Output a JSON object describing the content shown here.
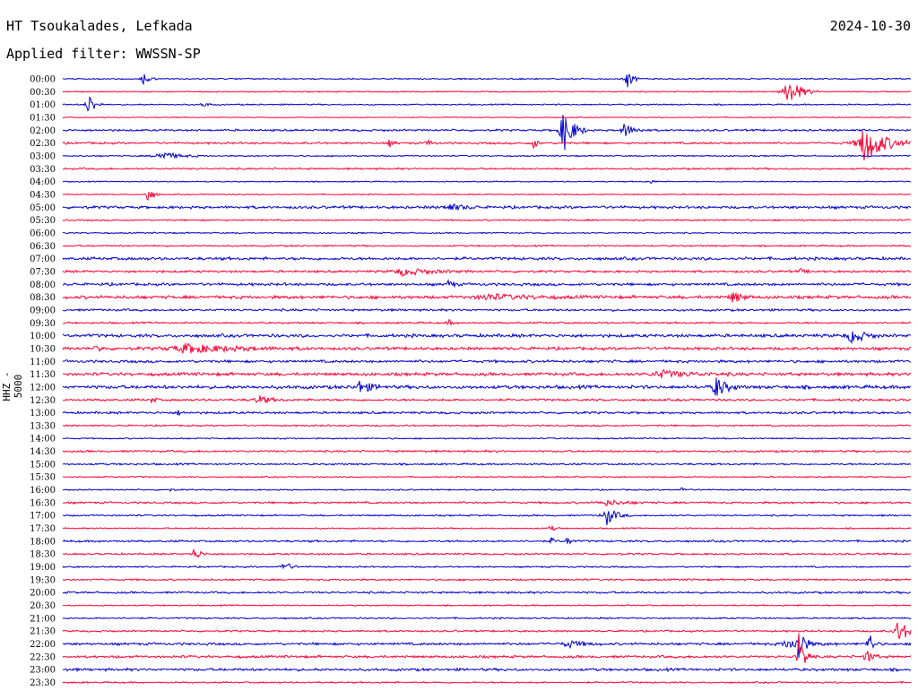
{
  "header": {
    "station": "HT Tsoukalades, Lefkada",
    "date": "2024-10-30",
    "filter_label": "Applied filter: WWSSN-SP"
  },
  "chart_data": {
    "type": "line",
    "ylabel": "HHZ - 5000",
    "colors": {
      "blue": "#0000cc",
      "red": "#ff0033",
      "text": "#000000"
    },
    "trace_start": "00:00",
    "trace_end": "23:30",
    "hour_labels": [
      "00:00",
      "00:30",
      "01:00",
      "01:30",
      "02:00",
      "02:30",
      "03:00",
      "03:30",
      "04:00",
      "04:30",
      "05:00",
      "05:30",
      "06:00",
      "06:30",
      "07:00",
      "07:30",
      "08:00",
      "08:30",
      "09:00",
      "09:30",
      "10:00",
      "10:30",
      "11:00",
      "11:30",
      "12:00",
      "12:30",
      "13:00",
      "13:30",
      "14:00",
      "14:30",
      "15:00",
      "15:30",
      "16:00",
      "16:30",
      "17:00",
      "17:30",
      "18:00",
      "18:30",
      "19:00",
      "19:30",
      "20:00",
      "20:30",
      "21:00",
      "21:30",
      "22:00",
      "22:30",
      "23:00",
      "23:30"
    ],
    "noise_levels": [
      0.6,
      0.5,
      0.6,
      0.4,
      0.9,
      0.9,
      0.6,
      0.8,
      0.5,
      0.5,
      1.2,
      0.7,
      0.6,
      0.7,
      1.3,
      1.0,
      1.2,
      1.4,
      1.0,
      0.8,
      1.4,
      1.3,
      1.2,
      1.4,
      1.5,
      1.0,
      1.0,
      0.7,
      0.6,
      0.9,
      0.8,
      0.6,
      0.6,
      0.9,
      0.7,
      0.6,
      0.9,
      0.8,
      0.7,
      0.8,
      0.9,
      0.6,
      0.7,
      0.8,
      1.1,
      1.1,
      1.2,
      0.7
    ],
    "events": [
      {
        "trace": 0,
        "t": 0.095,
        "amp": 9,
        "dur": 0.005
      },
      {
        "trace": 0,
        "t": 0.665,
        "amp": 11,
        "dur": 0.006
      },
      {
        "trace": 1,
        "t": 0.855,
        "amp": 18,
        "dur": 0.012
      },
      {
        "trace": 2,
        "t": 0.03,
        "amp": 14,
        "dur": 0.006
      },
      {
        "trace": 2,
        "t": 0.165,
        "amp": 3,
        "dur": 0.005
      },
      {
        "trace": 4,
        "t": 0.59,
        "amp": 26,
        "dur": 0.01
      },
      {
        "trace": 4,
        "t": 0.662,
        "amp": 8,
        "dur": 0.01
      },
      {
        "trace": 5,
        "t": 0.385,
        "amp": 4,
        "dur": 0.004
      },
      {
        "trace": 5,
        "t": 0.43,
        "amp": 4,
        "dur": 0.005
      },
      {
        "trace": 5,
        "t": 0.555,
        "amp": 7,
        "dur": 0.004
      },
      {
        "trace": 5,
        "t": 0.945,
        "amp": 23,
        "dur": 0.02
      },
      {
        "trace": 6,
        "t": 0.115,
        "amp": 5,
        "dur": 0.018
      },
      {
        "trace": 8,
        "t": 0.69,
        "amp": 3,
        "dur": 0.005
      },
      {
        "trace": 9,
        "t": 0.1,
        "amp": 11,
        "dur": 0.005
      },
      {
        "trace": 10,
        "t": 0.455,
        "amp": 4,
        "dur": 0.015
      },
      {
        "trace": 15,
        "t": 0.4,
        "amp": 4,
        "dur": 0.03
      },
      {
        "trace": 15,
        "t": 0.87,
        "amp": 3,
        "dur": 0.005
      },
      {
        "trace": 16,
        "t": 0.455,
        "amp": 5,
        "dur": 0.005
      },
      {
        "trace": 17,
        "t": 0.5,
        "amp": 3,
        "dur": 0.04
      },
      {
        "trace": 17,
        "t": 0.79,
        "amp": 7,
        "dur": 0.008
      },
      {
        "trace": 19,
        "t": 0.455,
        "amp": 4,
        "dur": 0.004
      },
      {
        "trace": 20,
        "t": 0.93,
        "amp": 9,
        "dur": 0.012
      },
      {
        "trace": 21,
        "t": 0.04,
        "amp": 4,
        "dur": 0.005
      },
      {
        "trace": 21,
        "t": 0.145,
        "amp": 5,
        "dur": 0.05
      },
      {
        "trace": 23,
        "t": 0.705,
        "amp": 4,
        "dur": 0.03
      },
      {
        "trace": 24,
        "t": 0.35,
        "amp": 7,
        "dur": 0.012
      },
      {
        "trace": 24,
        "t": 0.77,
        "amp": 13,
        "dur": 0.01
      },
      {
        "trace": 25,
        "t": 0.105,
        "amp": 4,
        "dur": 0.004
      },
      {
        "trace": 25,
        "t": 0.23,
        "amp": 5,
        "dur": 0.012
      },
      {
        "trace": 26,
        "t": 0.135,
        "amp": 3,
        "dur": 0.004
      },
      {
        "trace": 32,
        "t": 0.125,
        "amp": 2,
        "dur": 0.004
      },
      {
        "trace": 32,
        "t": 0.73,
        "amp": 3,
        "dur": 0.004
      },
      {
        "trace": 33,
        "t": 0.64,
        "amp": 3,
        "dur": 0.02
      },
      {
        "trace": 34,
        "t": 0.64,
        "amp": 12,
        "dur": 0.01
      },
      {
        "trace": 35,
        "t": 0.575,
        "amp": 4,
        "dur": 0.004
      },
      {
        "trace": 36,
        "t": 0.575,
        "amp": 4,
        "dur": 0.004
      },
      {
        "trace": 36,
        "t": 0.595,
        "amp": 6,
        "dur": 0.004
      },
      {
        "trace": 37,
        "t": 0.155,
        "amp": 8,
        "dur": 0.006
      },
      {
        "trace": 38,
        "t": 0.26,
        "amp": 8,
        "dur": 0.006
      },
      {
        "trace": 43,
        "t": 0.985,
        "amp": 13,
        "dur": 0.012
      },
      {
        "trace": 44,
        "t": 0.595,
        "amp": 4,
        "dur": 0.015
      },
      {
        "trace": 44,
        "t": 0.855,
        "amp": 5,
        "dur": 0.02
      },
      {
        "trace": 44,
        "t": 0.868,
        "amp": 30,
        "dur": 0.004
      },
      {
        "trace": 44,
        "t": 0.95,
        "amp": 18,
        "dur": 0.004
      },
      {
        "trace": 45,
        "t": 0.868,
        "amp": 28,
        "dur": 0.006
      },
      {
        "trace": 45,
        "t": 0.947,
        "amp": 9,
        "dur": 0.006
      }
    ]
  }
}
